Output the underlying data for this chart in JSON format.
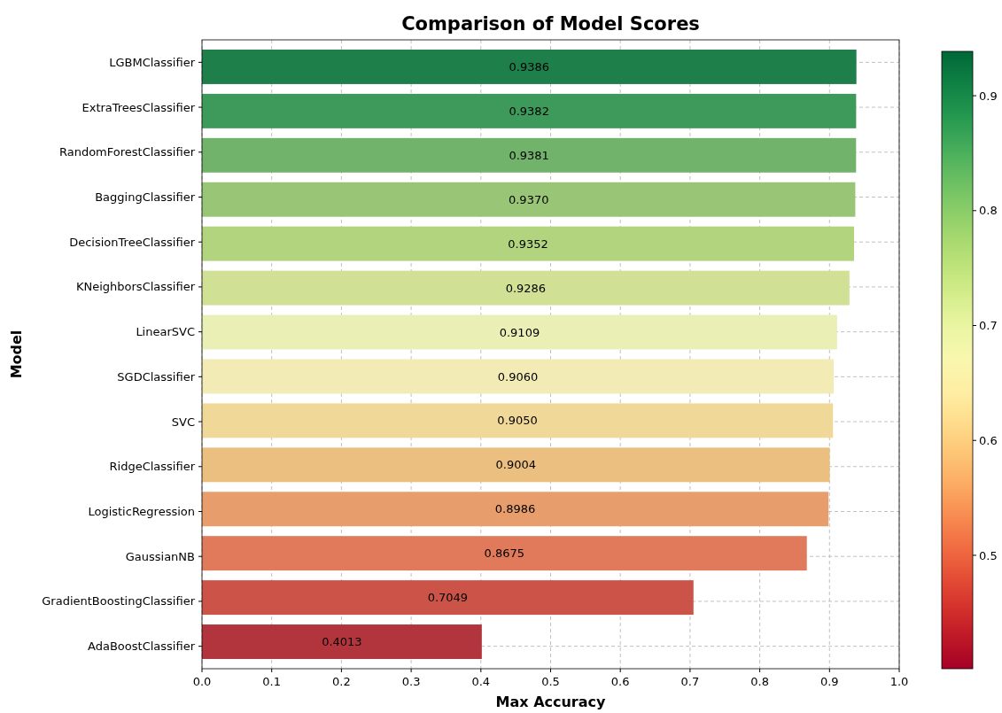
{
  "chart_data": {
    "type": "bar",
    "orientation": "horizontal",
    "title": "Comparison of Model Scores",
    "xlabel": "Max Accuracy",
    "ylabel": "Model",
    "categories": [
      "LGBMClassifier",
      "ExtraTreesClassifier",
      "RandomForestClassifier",
      "BaggingClassifier",
      "DecisionTreeClassifier",
      "KNeighborsClassifier",
      "LinearSVC",
      "SGDClassifier",
      "SVC",
      "RidgeClassifier",
      "LogisticRegression",
      "GaussianNB",
      "GradientBoostingClassifier",
      "AdaBoostClassifier"
    ],
    "values": [
      0.9386,
      0.9382,
      0.9381,
      0.937,
      0.9352,
      0.9286,
      0.9109,
      0.906,
      0.905,
      0.9004,
      0.8986,
      0.8675,
      0.7049,
      0.4013
    ],
    "value_labels": [
      "0.9386",
      "0.9382",
      "0.9381",
      "0.9370",
      "0.9352",
      "0.9286",
      "0.9109",
      "0.9060",
      "0.9050",
      "0.9004",
      "0.8986",
      "0.8675",
      "0.7049",
      "0.4013"
    ],
    "colors": [
      "#1e7f4a",
      "#3e9a5a",
      "#72b36b",
      "#98c676",
      "#b3d47f",
      "#d0e196",
      "#eaefb6",
      "#f2ebb5",
      "#f0d898",
      "#ebbf80",
      "#e79e6c",
      "#e07a5b",
      "#cc5347",
      "#b2343d"
    ],
    "xlim": [
      0,
      1
    ],
    "xticks": [
      {
        "value": 0,
        "label": "0.0"
      },
      0.1,
      0.2,
      0.3,
      0.4,
      0.5,
      0.6,
      0.7,
      0.8,
      0.9,
      {
        "value": 1,
        "label": "1.0"
      }
    ],
    "clim": [
      0.4013,
      0.9386
    ],
    "cticks": [
      0.5,
      0.6,
      0.7,
      0.8,
      0.9
    ],
    "grid": true
  }
}
